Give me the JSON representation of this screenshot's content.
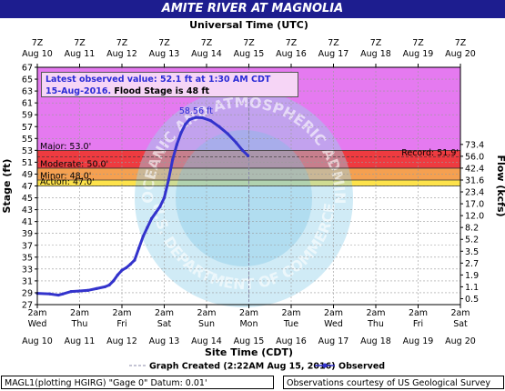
{
  "title": "AMITE RIVER AT MAGNOLIA",
  "top_axis_title": "Universal Time (UTC)",
  "bottom_axis_title": "Site Time (CDT)",
  "info": {
    "line1": "Latest observed value: 52.1 ft at 1:30 AM CDT",
    "line2_date": "15-Aug-2016.",
    "line2_flood": "Flood Stage is 48 ft"
  },
  "legend": {
    "created_label": "Graph Created (2:22AM Aug 15, 2016)",
    "observed_label": "Observed"
  },
  "footer_left": "MAGL1(plotting HGIRG) \"Gage 0\" Datum: 0.01'",
  "footer_right": "Observations courtesy of US Geological Survey",
  "watermark": [
    "NATIONAL OCEANIC AND ATMOSPHERIC ADMINISTRATION",
    "U.S. DEPARTMENT OF COMMERCE"
  ],
  "colors": {
    "title_bg": "#1d1d8f",
    "record_zone": "#e57af0",
    "major_zone": "#ee3b40",
    "moderate_zone": "#f5a050",
    "minor_zone": "#fde24a",
    "series": "#3333cc",
    "created_line": "#8888aa"
  },
  "chart_data": {
    "type": "line",
    "title": "AMITE RIVER AT MAGNOLIA",
    "xlabel": "Site Time (CDT)",
    "xlabel_top": "Universal Time (UTC)",
    "ylabel": "Stage (ft)",
    "ylabel_right": "Flow (kcfs)",
    "ylim": [
      27,
      67
    ],
    "yticks": [
      27,
      29,
      31,
      33,
      35,
      37,
      39,
      41,
      43,
      45,
      47,
      49,
      51,
      53,
      55,
      57,
      59,
      61,
      63,
      65,
      67
    ],
    "x_start_day": "Aug 10",
    "x_end_day": "Aug 20",
    "bottom_ticks": [
      {
        "time": "2am",
        "dow": "Wed",
        "date": "Aug 10"
      },
      {
        "time": "2am",
        "dow": "Thu",
        "date": "Aug 11"
      },
      {
        "time": "2am",
        "dow": "Fri",
        "date": "Aug 12"
      },
      {
        "time": "2am",
        "dow": "Sat",
        "date": "Aug 13"
      },
      {
        "time": "2am",
        "dow": "Sun",
        "date": "Aug 14"
      },
      {
        "time": "2am",
        "dow": "Mon",
        "date": "Aug 15"
      },
      {
        "time": "2am",
        "dow": "Tue",
        "date": "Aug 16"
      },
      {
        "time": "2am",
        "dow": "Wed",
        "date": "Aug 17"
      },
      {
        "time": "2am",
        "dow": "Thu",
        "date": "Aug 18"
      },
      {
        "time": "2am",
        "dow": "Fri",
        "date": "Aug 19"
      },
      {
        "time": "2am",
        "dow": "Sat",
        "date": "Aug 20"
      }
    ],
    "top_ticks": [
      {
        "time": "7Z",
        "date": "Aug 10"
      },
      {
        "time": "7Z",
        "date": "Aug 11"
      },
      {
        "time": "7Z",
        "date": "Aug 12"
      },
      {
        "time": "7Z",
        "date": "Aug 13"
      },
      {
        "time": "7Z",
        "date": "Aug 14"
      },
      {
        "time": "7Z",
        "date": "Aug 15"
      },
      {
        "time": "7Z",
        "date": "Aug 16"
      },
      {
        "time": "7Z",
        "date": "Aug 17"
      },
      {
        "time": "7Z",
        "date": "Aug 18"
      },
      {
        "time": "7Z",
        "date": "Aug 19"
      },
      {
        "time": "7Z",
        "date": "Aug 20"
      }
    ],
    "flow_ticks": [
      {
        "stage": 28,
        "label": "0.5"
      },
      {
        "stage": 30,
        "label": "1.1"
      },
      {
        "stage": 32,
        "label": "1.9"
      },
      {
        "stage": 34,
        "label": "2.7"
      },
      {
        "stage": 36,
        "label": "3.5"
      },
      {
        "stage": 38,
        "label": "5.2"
      },
      {
        "stage": 40,
        "label": "8.2"
      },
      {
        "stage": 42,
        "label": "12.0"
      },
      {
        "stage": 44,
        "label": "17.0"
      },
      {
        "stage": 46,
        "label": "23.4"
      },
      {
        "stage": 48,
        "label": "31.6"
      },
      {
        "stage": 50,
        "label": "42.4"
      },
      {
        "stage": 52,
        "label": "56.0"
      },
      {
        "stage": 54,
        "label": "73.4"
      }
    ],
    "thresholds": [
      {
        "name": "Action",
        "value": 47.0,
        "label": "Action: 47.0'"
      },
      {
        "name": "Minor",
        "value": 48.0,
        "label": "Minor: 48.0'"
      },
      {
        "name": "Moderate",
        "value": 50.0,
        "label": "Moderate: 50.0'"
      },
      {
        "name": "Major",
        "value": 53.0,
        "label": "Major: 53.0'"
      },
      {
        "name": "Record",
        "value": 51.9,
        "label": "Record: 51.9'"
      }
    ],
    "peak": {
      "day": 3.75,
      "value": 58.56,
      "label": "58.56 ft"
    },
    "created_day": 5.0,
    "series": [
      {
        "name": "Observed",
        "points": [
          [
            0.0,
            28.9
          ],
          [
            0.3,
            28.8
          ],
          [
            0.5,
            28.6
          ],
          [
            0.6,
            28.8
          ],
          [
            0.8,
            29.2
          ],
          [
            1.0,
            29.3
          ],
          [
            1.2,
            29.4
          ],
          [
            1.4,
            29.7
          ],
          [
            1.6,
            30.0
          ],
          [
            1.7,
            30.3
          ],
          [
            1.8,
            31.0
          ],
          [
            1.9,
            32.0
          ],
          [
            2.0,
            32.8
          ],
          [
            2.1,
            33.2
          ],
          [
            2.2,
            33.8
          ],
          [
            2.3,
            34.5
          ],
          [
            2.4,
            36.5
          ],
          [
            2.5,
            38.5
          ],
          [
            2.6,
            40.0
          ],
          [
            2.7,
            41.5
          ],
          [
            2.8,
            42.5
          ],
          [
            2.9,
            43.5
          ],
          [
            3.0,
            45.0
          ],
          [
            3.1,
            48.0
          ],
          [
            3.2,
            51.5
          ],
          [
            3.3,
            54.0
          ],
          [
            3.4,
            56.0
          ],
          [
            3.5,
            57.4
          ],
          [
            3.6,
            58.2
          ],
          [
            3.75,
            58.56
          ],
          [
            3.9,
            58.5
          ],
          [
            4.1,
            58.0
          ],
          [
            4.3,
            57.0
          ],
          [
            4.5,
            55.8
          ],
          [
            4.7,
            54.3
          ],
          [
            4.85,
            53.0
          ],
          [
            4.98,
            52.1
          ]
        ]
      }
    ]
  }
}
